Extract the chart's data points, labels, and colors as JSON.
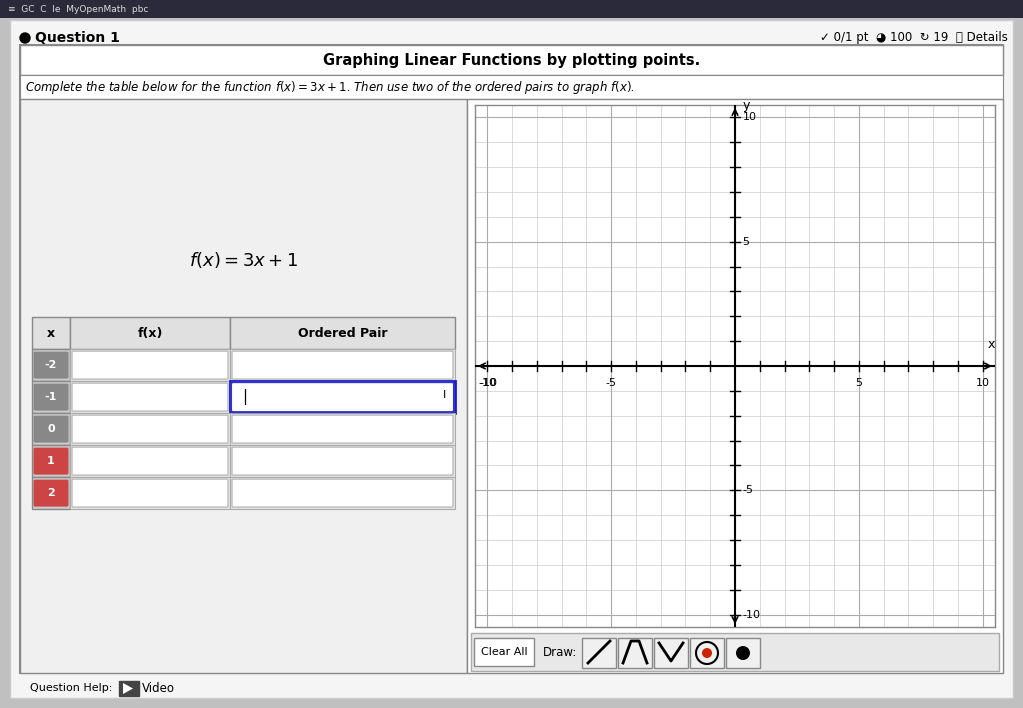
{
  "page_bg": "#c0c0c0",
  "card_bg": "#f0f0f0",
  "white": "#ffffff",
  "title": "Graphing Linear Functions by plotting points.",
  "subtitle": "Complete the table below for the function $f(x) = 3x + 1$. Then use two of the ordered pairs to graph $f(x)$.",
  "function_label": "$f(x) = 3x + 1$",
  "table_headers": [
    "x",
    "f(x)",
    "Ordered Pair"
  ],
  "table_rows": [
    "-2",
    "-1",
    "0",
    "1",
    "2"
  ],
  "question_label": "Question 1",
  "score_text": "0/1 pt ◑ 100 ↻ 19 ⓘ Details",
  "question_help": "Question Help:",
  "video_label": "Video",
  "grid_color": "#c8c8c8",
  "axis_color": "#000000",
  "border_color": "#999999",
  "border_color2": "#bbbbbb",
  "input_bg": "#e8e8e8",
  "active_border": "#2222aa",
  "row_x_colors": [
    "#888888",
    "#888888",
    "#888888",
    "#cc4444",
    "#cc4444"
  ],
  "toolbar_labels": [
    "Clear All",
    "Draw:"
  ],
  "browser_bar_color": "#1a1a2e"
}
